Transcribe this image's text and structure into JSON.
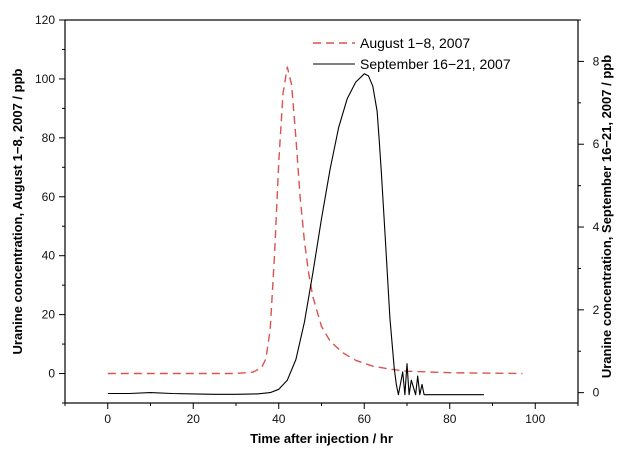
{
  "chart_data": {
    "type": "line",
    "xlabel": "Time after injection / hr",
    "ylabel_left": "Uranine concentration, August 1−8, 2007 / ppb",
    "ylabel_right": "Uranine concentration, September 16−21, 2007 / ppb",
    "xlim": [
      -10,
      110
    ],
    "ylim_left": [
      -10,
      120
    ],
    "ylim_right": [
      -0.25,
      9.0
    ],
    "x_ticks": [
      "0",
      "20",
      "40",
      "60",
      "80",
      "100"
    ],
    "y_ticks_left": [
      "0",
      "20",
      "40",
      "60",
      "80",
      "100",
      "120"
    ],
    "y_ticks_right": [
      "0",
      "2",
      "4",
      "6",
      "8"
    ],
    "legend_position": "top-right",
    "series": [
      {
        "name": "August 1−8, 2007",
        "axis": "left",
        "color": "#d9534f",
        "style": "dashed",
        "x": [
          0,
          20,
          30,
          34,
          36,
          37,
          38,
          39,
          40,
          41,
          42,
          43,
          44,
          45,
          46,
          47,
          48,
          50,
          52,
          55,
          58,
          62,
          66,
          70,
          80,
          90,
          97
        ],
        "y": [
          0,
          0,
          0,
          0.5,
          2,
          5,
          15,
          40,
          72,
          95,
          104,
          98,
          80,
          60,
          45,
          34,
          26,
          16,
          11,
          7,
          4.5,
          2.5,
          1.5,
          0.8,
          0.3,
          0.1,
          0
        ]
      },
      {
        "name": "September 16−21, 2007",
        "axis": "right",
        "color": "#000000",
        "style": "solid",
        "x": [
          0,
          5,
          10,
          15,
          20,
          25,
          30,
          35,
          38,
          40,
          42,
          44,
          46,
          48,
          50,
          52,
          54,
          56,
          58,
          60,
          61,
          62,
          63,
          63.5,
          64,
          65,
          66,
          67,
          67.5,
          68,
          69,
          69.5,
          70,
          70.5,
          71,
          72,
          72.5,
          73,
          73.5,
          74,
          76,
          80,
          84,
          88
        ],
        "y": [
          -0.02,
          -0.02,
          0.0,
          -0.02,
          -0.03,
          -0.04,
          -0.04,
          -0.03,
          0.0,
          0.08,
          0.3,
          0.8,
          1.7,
          2.9,
          4.2,
          5.4,
          6.4,
          7.1,
          7.5,
          7.7,
          7.65,
          7.4,
          6.8,
          6.1,
          5.3,
          3.6,
          1.8,
          0.6,
          0.2,
          -0.05,
          0.5,
          -0.05,
          0.7,
          -0.05,
          0.3,
          -0.05,
          0.4,
          -0.05,
          0.2,
          -0.05,
          -0.05,
          -0.05,
          -0.05,
          -0.05
        ]
      }
    ]
  }
}
